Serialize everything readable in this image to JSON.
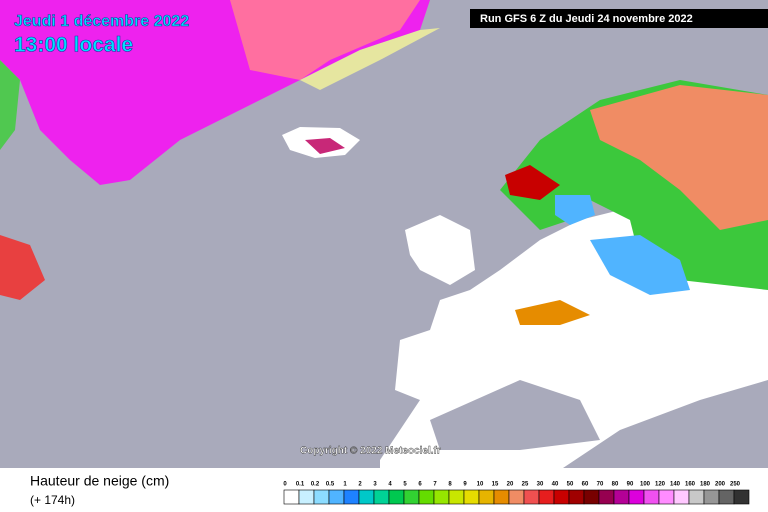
{
  "header": {
    "date": "Jeudi 1 décembre 2022",
    "time": "13:00 locale",
    "run": "Run GFS 6 Z du Jeudi 24 novembre 2022"
  },
  "copyright": "Copyright © 2022 Meteociel.fr",
  "legend": {
    "title": "Hauteur de neige (cm)",
    "lead": "(+ 174h)",
    "labels": [
      "0",
      "0.1",
      "0.2",
      "0.5",
      "1",
      "2",
      "3",
      "4",
      "5",
      "6",
      "7",
      "8",
      "9",
      "10",
      "15",
      "20",
      "25",
      "30",
      "40",
      "50",
      "60",
      "70",
      "80",
      "90",
      "100",
      "120",
      "140",
      "160",
      "180",
      "200",
      "250"
    ],
    "colors": [
      "#ffffff",
      "#c8f0ff",
      "#8cdcff",
      "#50b4ff",
      "#1e82ff",
      "#00c8c8",
      "#00d296",
      "#00c850",
      "#32d232",
      "#64dc00",
      "#96e600",
      "#c8e600",
      "#e6dc00",
      "#e6b400",
      "#e68c00",
      "#f08c64",
      "#f05050",
      "#e61e1e",
      "#c80000",
      "#a00000",
      "#780000",
      "#960050",
      "#b40096",
      "#dc00dc",
      "#f050f0",
      "#ff8cff",
      "#ffc8ff",
      "#c8c8c8",
      "#969696",
      "#646464",
      "#323232"
    ]
  }
}
